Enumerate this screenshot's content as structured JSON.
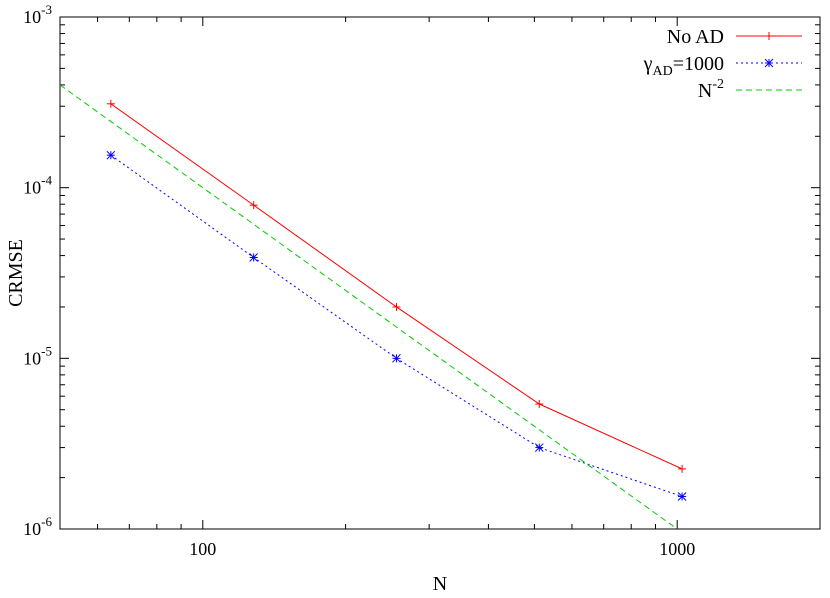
{
  "chart_data": {
    "type": "line",
    "xlabel": "N",
    "ylabel": "CRMSE",
    "xscale": "log",
    "yscale": "log",
    "xlim": [
      50,
      2000
    ],
    "ylim": [
      1e-06,
      0.001
    ],
    "x_ticks": [
      {
        "value": 100,
        "label": "100"
      },
      {
        "value": 1000,
        "label": "1000"
      }
    ],
    "y_ticks": [
      {
        "value": 1e-06,
        "base": "10",
        "exp": "-6"
      },
      {
        "value": 1e-05,
        "base": "10",
        "exp": "-5"
      },
      {
        "value": 0.0001,
        "base": "10",
        "exp": "-4"
      },
      {
        "value": 0.001,
        "base": "10",
        "exp": "-3"
      }
    ],
    "grid": false,
    "legend_position": "top-right",
    "series": [
      {
        "name": "No AD",
        "color": "#ff0000",
        "dash": "solid",
        "marker": "plus",
        "points": [
          {
            "x": 64,
            "y": 0.00031
          },
          {
            "x": 128,
            "y": 7.9e-05
          },
          {
            "x": 256,
            "y": 2e-05
          },
          {
            "x": 512,
            "y": 5.4e-06
          },
          {
            "x": 1024,
            "y": 2.25e-06
          }
        ]
      },
      {
        "name_main": "γ",
        "name_sub": "AD",
        "name_rest": "=1000",
        "color": "#0000ff",
        "dash": "dotted",
        "marker": "star",
        "points": [
          {
            "x": 64,
            "y": 0.000155
          },
          {
            "x": 128,
            "y": 3.9e-05
          },
          {
            "x": 256,
            "y": 1e-05
          },
          {
            "x": 512,
            "y": 3e-06
          },
          {
            "x": 1024,
            "y": 1.55e-06
          }
        ]
      },
      {
        "name_main": "N",
        "name_sup": "-2",
        "color": "#00cc00",
        "dash": "dashed",
        "marker": "none",
        "points": [
          {
            "x": 50,
            "y": 0.0004
          },
          {
            "x": 1000,
            "y": 1e-06
          }
        ]
      }
    ]
  }
}
